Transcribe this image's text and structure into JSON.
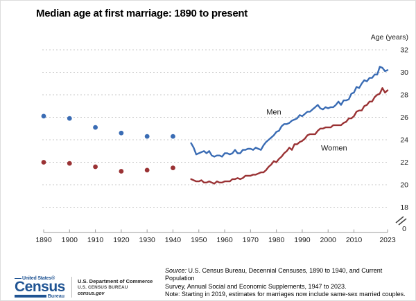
{
  "chart_data": {
    "type": "line",
    "title": "Median age at first marriage: 1890 to present",
    "y_axis_label": "Age (years)",
    "y_ticks": [
      32,
      30,
      28,
      26,
      24,
      22,
      20,
      18
    ],
    "y_axis_break_value": "0",
    "ylim_displayed": [
      18,
      32
    ],
    "x_ticks": [
      1890,
      1900,
      1910,
      1920,
      1930,
      1940,
      1950,
      1960,
      1970,
      1980,
      1990,
      2000,
      2010,
      2023
    ],
    "grid": "horizontal-dashed",
    "legend_position": "inline-annotations",
    "colors": {
      "men": "#3A6CB4",
      "women": "#9A3234"
    },
    "decennial_points": {
      "years": [
        1890,
        1900,
        1910,
        1920,
        1930,
        1940
      ],
      "men": [
        26.1,
        25.9,
        25.1,
        24.6,
        24.3,
        24.3
      ],
      "women": [
        22.0,
        21.9,
        21.6,
        21.2,
        21.3,
        21.5
      ]
    },
    "annual_series": {
      "years_start": 1947,
      "years_end": 2023,
      "series": [
        {
          "name": "Men",
          "color": "#3A6CB4",
          "values": [
            23.7,
            23.3,
            22.7,
            22.8,
            22.9,
            23.0,
            22.8,
            23.0,
            22.6,
            22.5,
            22.6,
            22.6,
            22.5,
            22.8,
            22.8,
            22.7,
            22.8,
            23.1,
            22.8,
            22.8,
            23.1,
            23.1,
            23.2,
            23.2,
            23.1,
            23.3,
            23.2,
            23.1,
            23.5,
            23.8,
            24.0,
            24.2,
            24.4,
            24.7,
            24.8,
            25.2,
            25.4,
            25.4,
            25.5,
            25.7,
            25.8,
            25.9,
            26.2,
            26.1,
            26.3,
            26.5,
            26.5,
            26.7,
            26.9,
            27.1,
            26.8,
            26.7,
            26.9,
            26.8,
            26.9,
            26.9,
            27.1,
            27.4,
            27.1,
            27.5,
            27.5,
            27.6,
            28.1,
            28.2,
            28.7,
            28.6,
            29.0,
            29.3,
            29.2,
            29.5,
            29.5,
            29.8,
            29.8,
            30.5,
            30.4,
            30.1,
            30.2
          ]
        },
        {
          "name": "Women",
          "color": "#9A3234",
          "values": [
            20.5,
            20.4,
            20.3,
            20.3,
            20.4,
            20.2,
            20.2,
            20.3,
            20.2,
            20.1,
            20.3,
            20.2,
            20.2,
            20.3,
            20.3,
            20.3,
            20.5,
            20.5,
            20.6,
            20.5,
            20.6,
            20.8,
            20.8,
            20.8,
            20.9,
            20.9,
            21.0,
            21.1,
            21.1,
            21.3,
            21.6,
            21.8,
            22.1,
            22.0,
            22.3,
            22.5,
            22.8,
            23.0,
            23.3,
            23.1,
            23.6,
            23.6,
            23.8,
            23.9,
            24.1,
            24.4,
            24.5,
            24.5,
            24.5,
            24.8,
            25.0,
            25.0,
            25.1,
            25.1,
            25.1,
            25.3,
            25.3,
            25.3,
            25.3,
            25.5,
            25.6,
            25.9,
            25.9,
            26.1,
            26.5,
            26.6,
            26.6,
            27.0,
            27.1,
            27.4,
            27.4,
            27.8,
            28.0,
            28.1,
            28.6,
            28.2,
            28.4
          ]
        }
      ]
    },
    "annotations": [
      {
        "text": "Men",
        "year": 1979,
        "age": 26.5
      },
      {
        "text": "Women",
        "year": 2002.3,
        "age": 23.3
      }
    ]
  },
  "footer": {
    "source_label": "Source:",
    "source_line1": "U.S. Census Bureau, Decennial Censuses, 1890 to 1940, and Current Population",
    "source_line2": "Survey, Annual Social and Economic Supplements, 1947 to 2023.",
    "note": "Note: Starting in 2019, estimates for marriages now include same-sex married couples.",
    "logo": {
      "top": "United States®",
      "name": "Census",
      "sub": "Bureau"
    },
    "agency_line1": "U.S. Department of Commerce",
    "agency_line2": "U.S. CENSUS BUREAU",
    "agency_line3": "census.gov"
  }
}
